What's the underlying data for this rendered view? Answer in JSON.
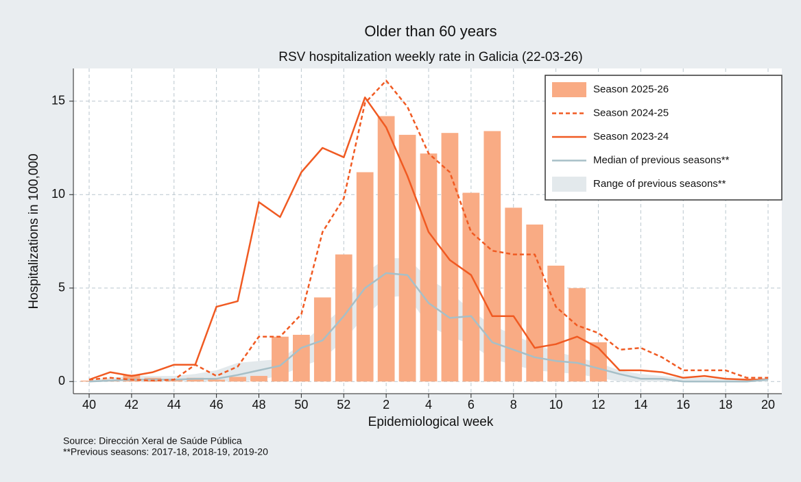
{
  "chart_data": {
    "type": "bar",
    "title": "Older than 60 years",
    "subtitle": "RSV hospitalization weekly rate in Galicia (22-03-26)",
    "x_label": "Epidemiological week",
    "y_label": "Hospitalizations in 100,000",
    "notes": [
      "Source: Dirección Xeral de Saúde Pública",
      "**Previous seasons: 2017-18, 2018-19, 2019-20"
    ],
    "categories": [
      "40",
      null,
      "42",
      null,
      "44",
      null,
      "46",
      null,
      "48",
      null,
      "50",
      null,
      "52",
      null,
      "2",
      null,
      "4",
      null,
      "6",
      null,
      "8",
      null,
      "10",
      null,
      "12",
      null,
      "14",
      null,
      "16",
      null,
      "18",
      null,
      "20"
    ],
    "ylim": [
      -0.65,
      16.75
    ],
    "yticks": [
      0,
      5,
      10,
      15
    ],
    "grid": true,
    "legend": "upper right",
    "series": [
      {
        "name": "Season 2025-26",
        "kind": "bar",
        "color": "#f9ab84",
        "values": [
          0.05,
          0.1,
          0.37,
          0.2,
          0.1,
          0.2,
          0.1,
          0.25,
          0.3,
          2.4,
          2.5,
          4.5,
          6.8,
          11.2,
          14.2,
          13.2,
          12.2,
          13.3,
          10.1,
          13.4,
          9.3,
          8.4,
          6.2,
          5.0,
          2.1,
          null,
          null,
          null,
          null,
          null,
          null,
          null,
          null
        ]
      },
      {
        "name": "Season 2024-25",
        "kind": "dashed",
        "color": "#f05a22",
        "values": [
          0.1,
          0.2,
          0.1,
          0.05,
          0.1,
          0.9,
          0.3,
          0.8,
          2.4,
          2.4,
          3.6,
          8.0,
          9.8,
          14.9,
          16.1,
          14.7,
          12.2,
          11.2,
          8.0,
          7.0,
          6.8,
          6.8,
          4.0,
          3.0,
          2.6,
          1.7,
          1.8,
          1.3,
          0.6,
          0.6,
          0.6,
          0.2,
          0.2
        ]
      },
      {
        "name": "Season 2023-24",
        "kind": "line",
        "color": "#f05a22",
        "values": [
          0.1,
          0.5,
          0.3,
          0.5,
          0.9,
          0.9,
          4.0,
          4.3,
          9.6,
          8.8,
          11.2,
          12.5,
          12.0,
          15.2,
          13.6,
          11.0,
          8.0,
          6.5,
          5.7,
          3.5,
          3.5,
          1.8,
          2.0,
          2.4,
          1.8,
          0.6,
          0.6,
          0.5,
          0.2,
          0.3,
          0.15,
          0.1,
          0.1
        ]
      },
      {
        "name": "Median of previous seasons**",
        "kind": "line",
        "color": "#a6bfc7",
        "values": [
          0,
          0.05,
          0.1,
          0.1,
          0.1,
          0.15,
          0.15,
          0.35,
          0.6,
          0.85,
          1.8,
          2.2,
          3.5,
          5.0,
          5.8,
          5.7,
          4.2,
          3.4,
          3.5,
          2.1,
          1.7,
          1.3,
          1.1,
          1.0,
          0.7,
          0.4,
          0.15,
          0.15,
          0,
          0,
          0,
          0,
          0.1
        ]
      },
      {
        "name": "Range of previous seasons**",
        "kind": "range",
        "color": "#e3e9ec",
        "low": [
          0,
          0,
          0,
          0,
          0,
          0,
          0,
          0,
          0.1,
          0.3,
          0.8,
          1.2,
          2.2,
          3.5,
          4.5,
          4.6,
          3.0,
          2.4,
          2.0,
          1.2,
          0.9,
          0.6,
          0.5,
          0.4,
          0.2,
          0,
          0,
          0,
          0,
          0,
          0,
          0,
          0
        ],
        "high": [
          0.1,
          0.2,
          0.3,
          0.3,
          0.3,
          0.4,
          0.6,
          1.0,
          1.1,
          1.2,
          2.0,
          3.0,
          4.0,
          5.8,
          6.6,
          6.6,
          5.5,
          4.8,
          3.8,
          3.0,
          2.5,
          2.0,
          1.6,
          1.3,
          1.0,
          0.6,
          0.4,
          0.3,
          0.2,
          0.2,
          0.1,
          0.1,
          0.2
        ]
      }
    ]
  }
}
